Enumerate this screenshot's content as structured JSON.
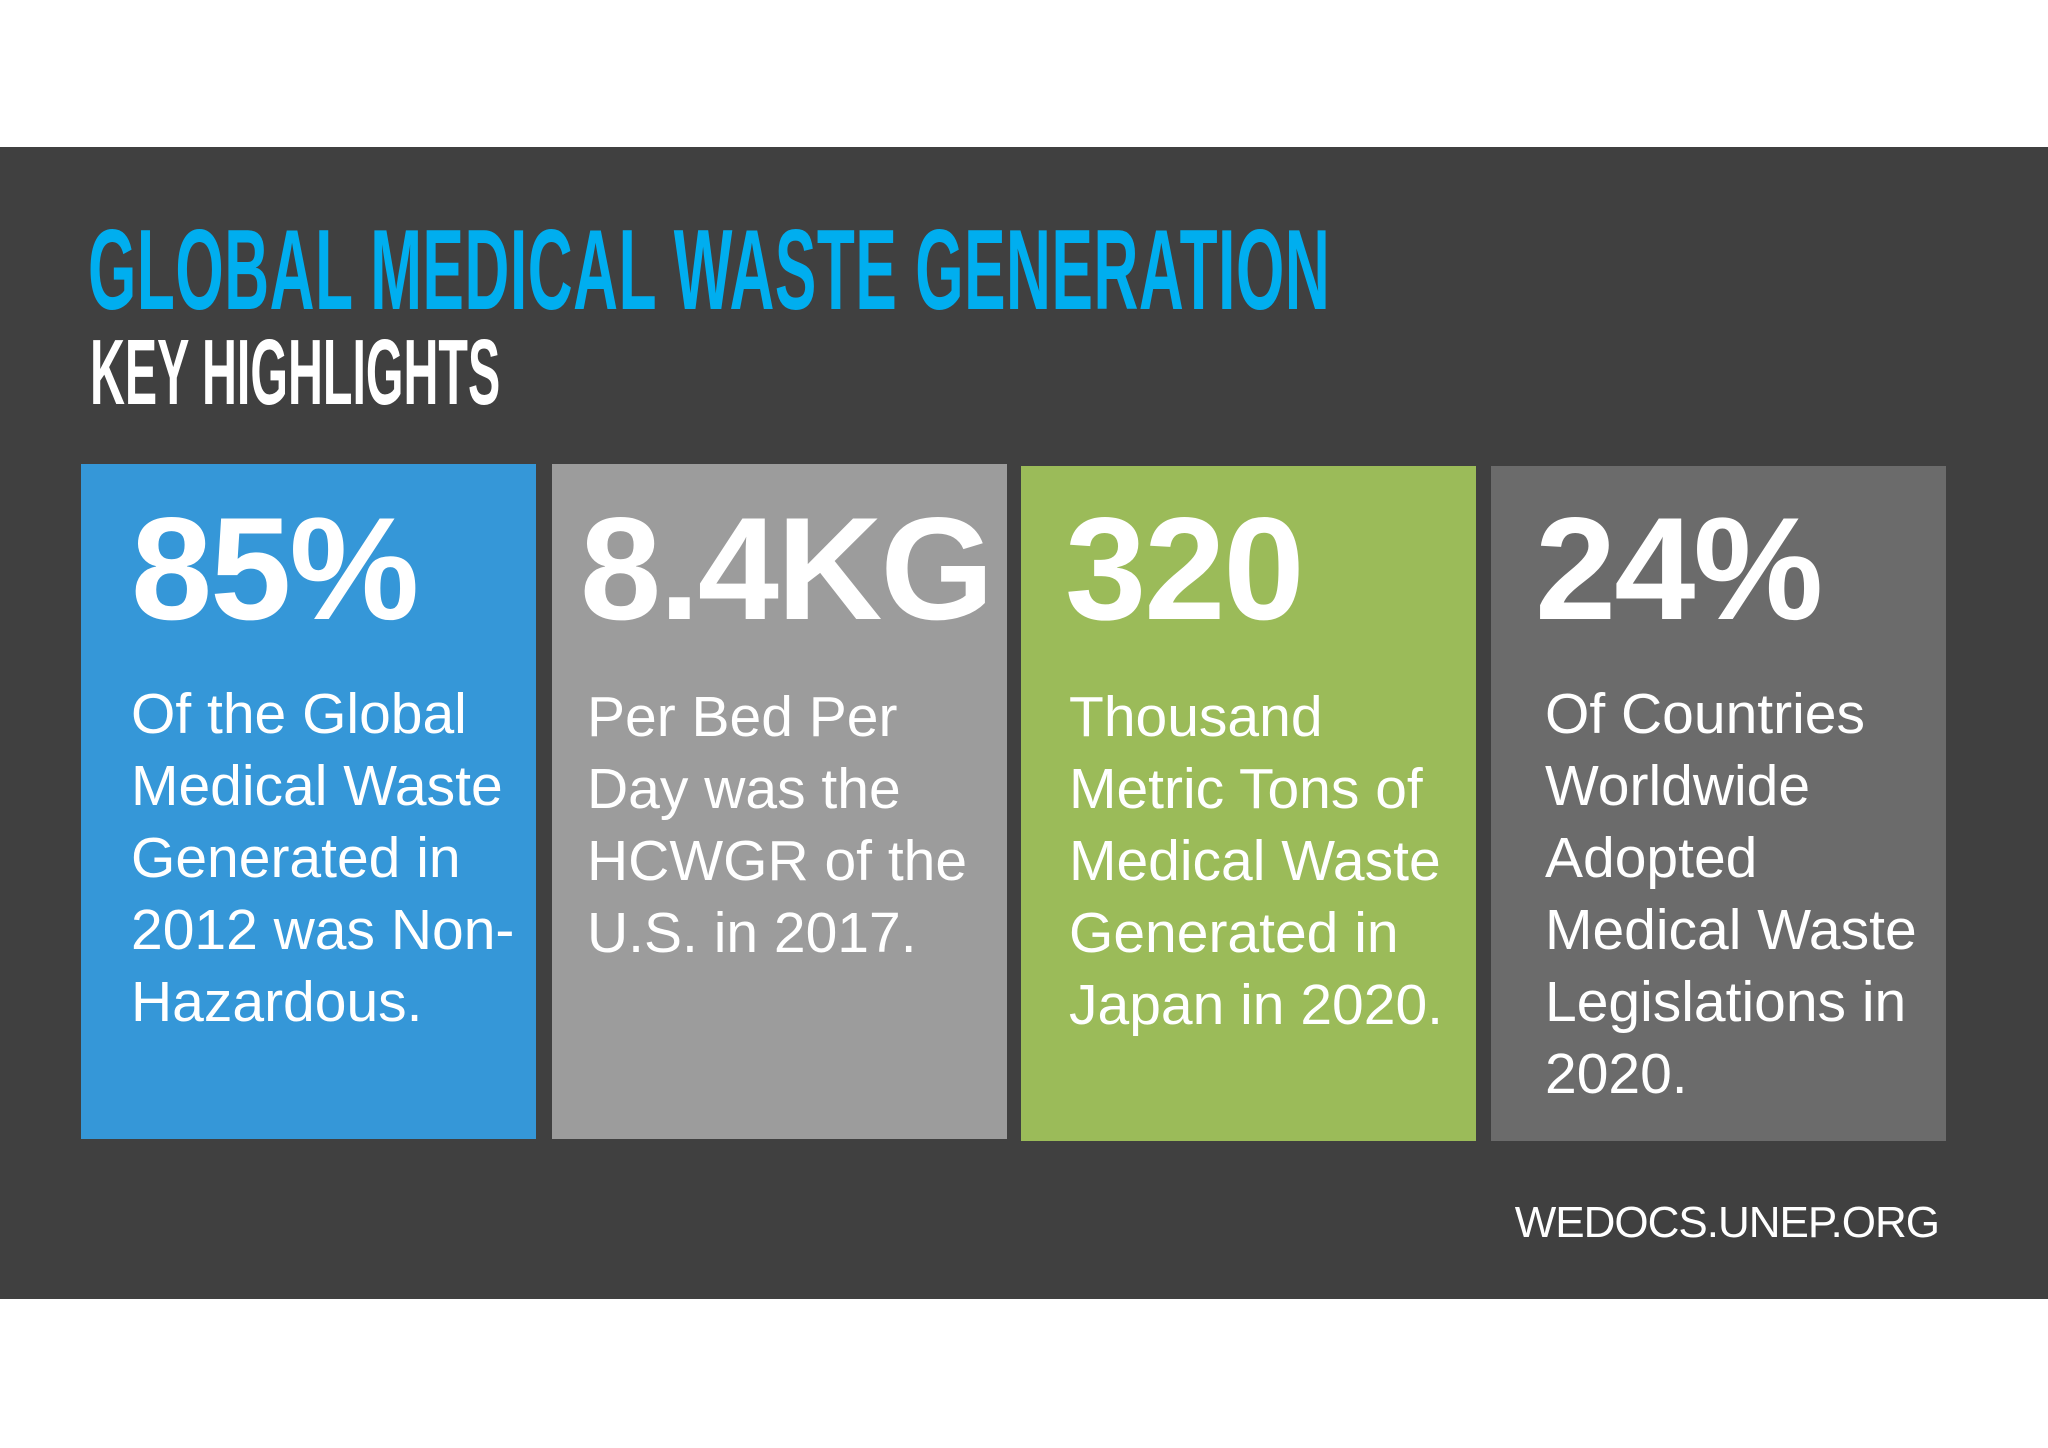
{
  "header": {
    "title": "GLOBAL MEDICAL WASTE GENERATION",
    "subtitle": "KEY HIGHLIGHTS"
  },
  "colors": {
    "background": "#404040",
    "title": "#00aeef",
    "card_blue": "#3597d8",
    "card_light_gray": "#9c9c9c",
    "card_green": "#9bbb59",
    "card_dark_gray": "#6b6b6b"
  },
  "cards": [
    {
      "value": "85%",
      "text": "Of the Global Medical Waste Generated in 2012 was Non-Hazardous."
    },
    {
      "value": "8.4KG",
      "text": "Per Bed Per Day was the HCWGR of the U.S. in 2017."
    },
    {
      "value": "320",
      "text": "Thousand Metric Tons of Medical Waste Generated in Japan in 2020."
    },
    {
      "value": "24%",
      "text": "Of Countries Worldwide Adopted Medical Waste Legislations in 2020."
    }
  ],
  "footer": {
    "source": "WEDOCS.UNEP.ORG"
  }
}
